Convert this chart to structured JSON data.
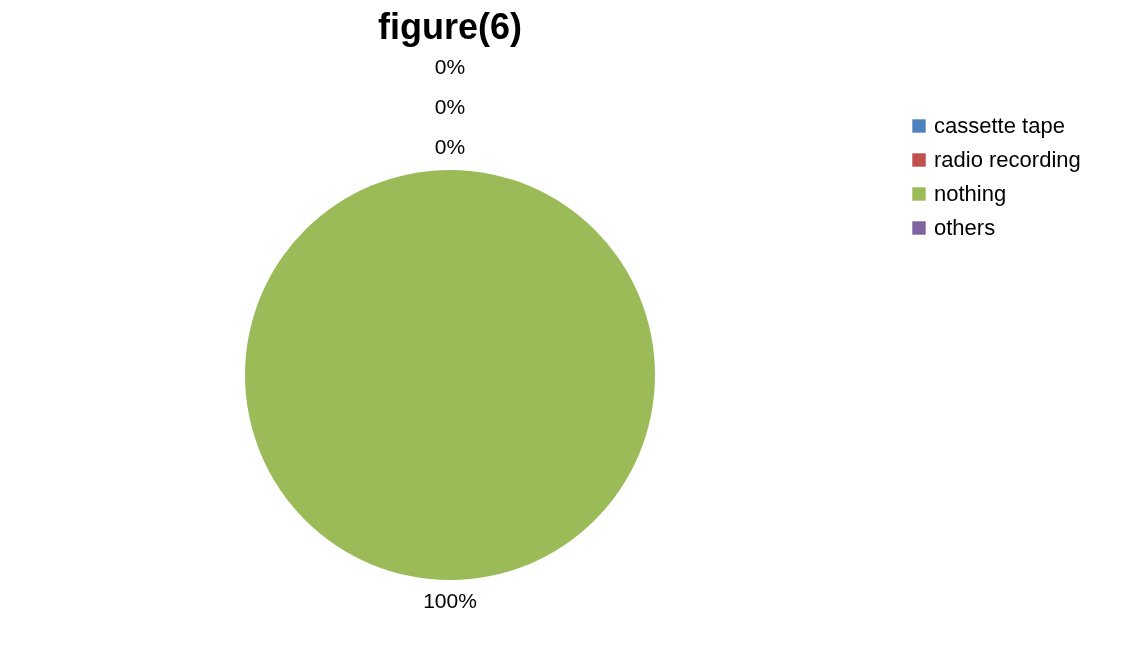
{
  "chart_data": {
    "type": "pie",
    "title": "figure(6)",
    "categories": [
      "cassette tape",
      "radio recording",
      "nothing",
      "others"
    ],
    "values": [
      0,
      0,
      100,
      0
    ],
    "colors": [
      "#4f81bd",
      "#c0504d",
      "#9bbb59",
      "#8064a2"
    ],
    "value_labels": [
      "0%",
      "0%",
      "100%",
      "0%"
    ],
    "legend": "right"
  }
}
